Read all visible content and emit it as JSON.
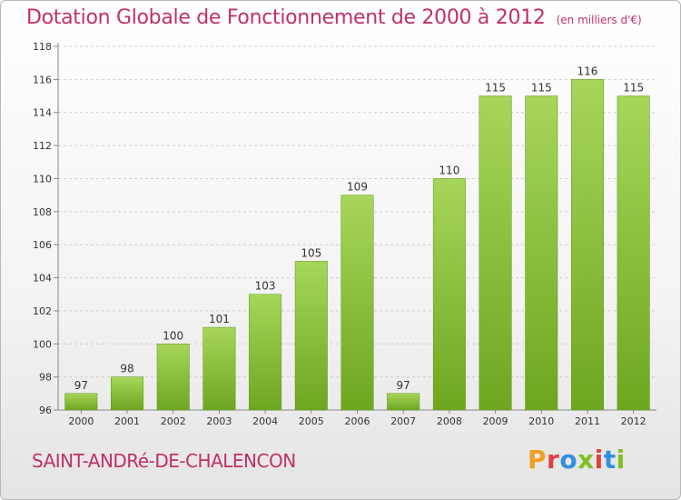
{
  "chart_data": {
    "type": "bar",
    "title": "Dotation Globale de Fonctionnement de 2000 à 2012",
    "subtitle": "(en milliers d'€)",
    "xlabel": "",
    "ylabel": "",
    "categories": [
      "2000",
      "2001",
      "2002",
      "2003",
      "2004",
      "2005",
      "2006",
      "2007",
      "2008",
      "2009",
      "2010",
      "2011",
      "2012"
    ],
    "values": [
      97,
      98,
      100,
      101,
      103,
      105,
      109,
      97,
      110,
      115,
      115,
      116,
      115
    ],
    "ylim": [
      96,
      118
    ],
    "yticks": [
      96,
      98,
      100,
      102,
      104,
      106,
      108,
      110,
      112,
      114,
      116,
      118
    ],
    "grid": true,
    "colors": {
      "bar_top": "#a6d65a",
      "bar_bottom": "#6ea620",
      "accent": "#c0306a"
    }
  },
  "footer": {
    "town": "SAINT-ANDRé-DE-CHALENCON",
    "logo": "Proxiti"
  },
  "logo_letter_colors": [
    "#f0a020",
    "#e04040",
    "#3090e0",
    "#80c020",
    "#e04040",
    "#3090e0",
    "#80c020"
  ]
}
